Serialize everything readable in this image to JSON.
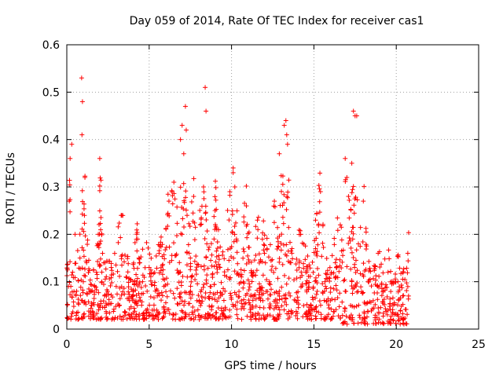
{
  "chart_data": {
    "type": "scatter",
    "title": "Day 059 of 2014, Rate Of TEC Index for receiver cas1",
    "xlabel": "GPS time / hours",
    "ylabel": "ROTI / TECUs",
    "xlim": [
      0,
      25
    ],
    "ylim": [
      0,
      0.6
    ],
    "xticks": [
      "0",
      "5",
      "10",
      "15",
      "20",
      "25"
    ],
    "yticks": [
      "0",
      "0.1",
      "0.2",
      "0.3",
      "0.4",
      "0.5",
      "0.6"
    ],
    "grid": true,
    "marker": "plus",
    "color": "#ff0000",
    "series": [
      {
        "name": "cas1",
        "note": "dense red plus markers spanning 0–20.8 h; representative sampled points (hours, TECU)",
        "x": [
          0.1,
          0.2,
          0.3,
          0.35,
          0.5,
          0.6,
          0.8,
          0.9,
          1.0,
          1.2,
          1.5,
          1.8,
          2.0,
          2.3,
          2.7,
          3.0,
          3.3,
          3.6,
          4.0,
          4.3,
          4.6,
          5.0,
          5.3,
          5.6,
          5.9,
          6.2,
          6.5,
          6.8,
          7.0,
          7.1,
          7.3,
          7.5,
          7.7,
          7.9,
          8.1,
          8.3,
          8.5,
          8.7,
          9.0,
          9.3,
          9.6,
          9.9,
          10.1,
          10.3,
          10.6,
          10.9,
          11.3,
          11.6,
          12.0,
          12.3,
          12.6,
          12.9,
          13.2,
          13.4,
          13.6,
          13.9,
          14.2,
          14.5,
          14.8,
          15.1,
          15.4,
          15.7,
          16.0,
          16.3,
          16.6,
          16.9,
          17.1,
          17.3,
          17.5,
          17.7,
          18.0,
          18.3,
          18.6,
          18.9,
          19.2,
          19.5,
          19.8,
          20.1,
          20.4,
          20.7,
          0.9,
          0.95,
          0.92,
          8.4,
          8.45,
          7.2,
          7.25,
          13.3,
          13.35,
          17.4,
          17.6,
          0.15,
          2.0,
          1.1,
          6.9,
          7.0,
          16.9,
          17.0,
          10.1,
          10.2,
          12.9
        ],
        "y": [
          0.09,
          0.36,
          0.39,
          0.12,
          0.2,
          0.08,
          0.15,
          0.06,
          0.1,
          0.14,
          0.05,
          0.12,
          0.18,
          0.07,
          0.13,
          0.09,
          0.24,
          0.11,
          0.06,
          0.19,
          0.1,
          0.13,
          0.04,
          0.16,
          0.09,
          0.27,
          0.31,
          0.12,
          0.2,
          0.37,
          0.24,
          0.15,
          0.28,
          0.06,
          0.22,
          0.3,
          0.18,
          0.09,
          0.25,
          0.13,
          0.08,
          0.29,
          0.34,
          0.19,
          0.11,
          0.26,
          0.07,
          0.21,
          0.16,
          0.1,
          0.27,
          0.08,
          0.43,
          0.39,
          0.14,
          0.06,
          0.2,
          0.12,
          0.05,
          0.17,
          0.29,
          0.09,
          0.06,
          0.14,
          0.22,
          0.08,
          0.28,
          0.35,
          0.45,
          0.18,
          0.27,
          0.1,
          0.06,
          0.16,
          0.08,
          0.12,
          0.05,
          0.1,
          0.07,
          0.16,
          0.53,
          0.48,
          0.41,
          0.51,
          0.46,
          0.47,
          0.42,
          0.44,
          0.41,
          0.46,
          0.45,
          0.27,
          0.36,
          0.32,
          0.4,
          0.43,
          0.36,
          0.32,
          0.33,
          0.3,
          0.37
        ]
      }
    ]
  }
}
